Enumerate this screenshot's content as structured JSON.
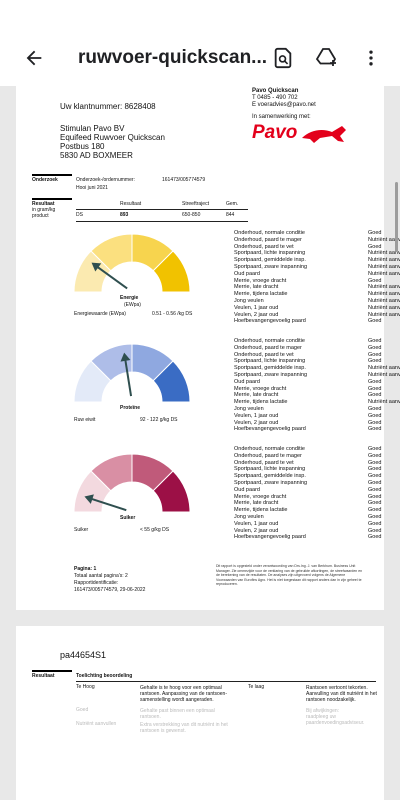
{
  "appbar": {
    "title": "ruwvoer-quickscan...",
    "back_icon": "arrow-back-icon",
    "search_icon": "document-search-icon",
    "drive_icon": "add-to-drive-icon",
    "more_icon": "more-vertical-icon"
  },
  "page1": {
    "customer_number": "Uw klantnummer: 8628408",
    "address": [
      "Stimulan Pavo BV",
      "Equifeed Ruwvoer Quickscan",
      "Postbus 180",
      "5830 AD  BOXMEER"
    ],
    "company": {
      "name": "Pavo Quickscan",
      "phone": "T  0485 - 490 702",
      "email": "E  voeradvies@pavo.net",
      "collab": "In samenwerking met:",
      "logo": "Pavo"
    },
    "onderzoek_label": "Onderzoek",
    "onderzoek_number_label": "Onderzoek-/ordernummer:",
    "onderzoek_number": "161473/005774579",
    "onderzoek_desc": "Hooi juni 2021",
    "results_header": {
      "label": "Resultaat",
      "sub1": "in gram/kg",
      "sub2": "product",
      "col_result": "Resultaat",
      "col_range": "Streeftraject",
      "col_avg": "Gem."
    },
    "ds_row": {
      "name": "DS",
      "result": "893",
      "range": "650-850",
      "avg": "844"
    },
    "gauges": [
      {
        "name": "Energie",
        "sub": "(EWpa)",
        "value_label": "Energiewaarde (EWpa)",
        "value_text": "0.51 - 0.56 /kg DS",
        "level": 0.2,
        "colors": [
          "#fbeab0",
          "#fbe07f",
          "#f7d44e",
          "#f1c200"
        ]
      },
      {
        "name": "Proteïne",
        "sub": "",
        "value_label": "Ruw eiwit",
        "value_text": "92 - 122 g/kg DS",
        "level": 0.45,
        "colors": [
          "#e3eaf8",
          "#aebde8",
          "#8fa8e0",
          "#3a6cc4"
        ]
      },
      {
        "name": "Suiker",
        "sub": "",
        "value_label": "Suiker",
        "value_text": "< 55 g/kg DS",
        "level": 0.1,
        "colors": [
          "#f3d9df",
          "#d98fa4",
          "#c05a7a",
          "#9c1046"
        ]
      }
    ],
    "assessments": [
      [
        [
          "Onderhoud, normale conditie",
          "Goed"
        ],
        [
          "Onderhoud, paard te mager",
          "Nutriënt aanvullen"
        ],
        [
          "Onderhoud, paard te vet",
          "Goed"
        ],
        [
          "Sportpaard, lichte inspanning",
          "Nutriënt aanvullen"
        ],
        [
          "Sportpaard, gemiddelde insp.",
          "Nutriënt aanvullen"
        ],
        [
          "Sportpaard, zware inspanning",
          "Nutriënt aanvullen"
        ],
        [
          "Oud paard",
          "Nutriënt aanvullen"
        ],
        [
          "Merrie, vroege dracht",
          "Goed"
        ],
        [
          "Merrie, late dracht",
          "Nutriënt aanvullen"
        ],
        [
          "Merrie, tijdens lactatie",
          "Nutriënt aanvullen"
        ],
        [
          "Jong veulen",
          "Nutriënt aanvullen"
        ],
        [
          "Veulen, 1 jaar oud",
          "Nutriënt aanvullen"
        ],
        [
          "Veulen, 2 jaar oud",
          "Nutriënt aanvullen"
        ],
        [
          "Hoefbevangengevoelig paard",
          "Goed"
        ]
      ],
      [
        [
          "Onderhoud, normale conditie",
          "Goed"
        ],
        [
          "Onderhoud, paard te mager",
          "Goed"
        ],
        [
          "Onderhoud, paard te vet",
          "Goed"
        ],
        [
          "Sportpaard, lichte inspanning",
          "Goed"
        ],
        [
          "Sportpaard, gemiddelde insp.",
          "Nutriënt aanvullen"
        ],
        [
          "Sportpaard, zware inspanning",
          "Nutriënt aanvullen"
        ],
        [
          "Oud paard",
          "Goed"
        ],
        [
          "Merrie, vroege dracht",
          "Goed"
        ],
        [
          "Merrie, late dracht",
          "Goed"
        ],
        [
          "Merrie, tijdens lactatie",
          "Nutriënt aanvullen"
        ],
        [
          "Jong veulen",
          "Goed"
        ],
        [
          "Veulen, 1 jaar oud",
          "Goed"
        ],
        [
          "Veulen, 2 jaar oud",
          "Goed"
        ],
        [
          "Hoefbevangengevoelig paard",
          "Goed"
        ]
      ],
      [
        [
          "Onderhoud, normale conditie",
          "Goed"
        ],
        [
          "Onderhoud, paard te mager",
          "Goed"
        ],
        [
          "Onderhoud, paard te vet",
          "Goed"
        ],
        [
          "Sportpaard, lichte inspanning",
          "Goed"
        ],
        [
          "Sportpaard, gemiddelde insp.",
          "Goed"
        ],
        [
          "Sportpaard, zware inspanning",
          "Goed"
        ],
        [
          "Oud paard",
          "Goed"
        ],
        [
          "Merrie, vroege dracht",
          "Goed"
        ],
        [
          "Merrie, late dracht",
          "Goed"
        ],
        [
          "Merrie, tijdens lactatie",
          "Goed"
        ],
        [
          "Jong veulen",
          "Goed"
        ],
        [
          "Veulen, 1 jaar oud",
          "Goed"
        ],
        [
          "Veulen, 2 jaar oud",
          "Goed"
        ],
        [
          "Hoefbevangengevoelig paard",
          "Goed"
        ]
      ]
    ],
    "footer": {
      "page": "Pagina: 1",
      "total": "Totaal aantal pagina's: 2",
      "report_label": "Rapportidentificatie:",
      "report_id": "161473/005774579, 29-06-2022",
      "disclaimer": "Dit rapport is opgesteld onder verantwoording van Drs.Ing. J. van Berkhum. Business Unit Manager. Zie ommezijde voor de verklaring van de gebruikte afkortingen, de streefwaarden en de berekening van de resultaten. De analyses zijn uitgevoerd volgens de Algemene Voorwaarden van Eurofins Agro. Het is niet toegestaan dit rapport anders dan in zijn geheel te reproduceren."
    }
  },
  "page2": {
    "code": "pa44654S1",
    "label": "Resultaat",
    "heading": "Toelichting beoordeling",
    "col1_title": "Te Hoog",
    "col1_text": "Gehalte is te hoog voor een optimaal rantsoen. Aanpassing van de rantsoen-samenstelling wordt aangeraden.",
    "col2_title": "Te laag",
    "col2_text": "Rantsoen vertoont tekorten. Aanvulling van dit nutriënt in het rantsoen noodzakelijk.",
    "rows": [
      [
        "Goed",
        "Gehalte past binnen een optimaal rantsoen.",
        "Bij afwijkingen:",
        "raadpleeg uw paardenvoedingsadviseur."
      ],
      [
        "Nutriënt aanvullen",
        "Extra verstrekking van dit nutriënt in het rantsoen is gewenst.",
        "",
        ""
      ]
    ]
  }
}
